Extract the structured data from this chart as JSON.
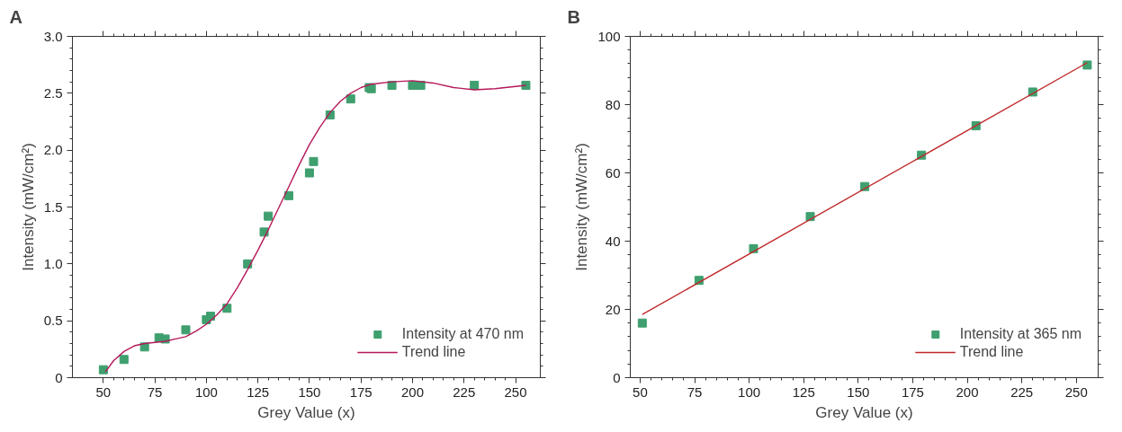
{
  "chart_data": [
    {
      "type": "scatter",
      "title": "A",
      "xlabel": "Grey Value (x)",
      "ylabel": "Intensity (mW/cm²)",
      "xlim": [
        35,
        262
      ],
      "ylim": [
        0,
        3.0
      ],
      "xticks": [
        50,
        75,
        100,
        125,
        150,
        175,
        200,
        225,
        250
      ],
      "yticks": [
        {
          "value": 0,
          "label": "0"
        },
        {
          "value": 0.5,
          "label": "0.5"
        },
        {
          "value": 1.0,
          "label": "1.0"
        },
        {
          "value": 1.5,
          "label": "1.5"
        },
        {
          "value": 2.0,
          "label": "2.0"
        },
        {
          "value": 2.5,
          "label": "2.5"
        },
        {
          "value": 3.0,
          "label": "3.0"
        }
      ],
      "grid": false,
      "legend": "bottom right",
      "series": [
        {
          "name": "Intensity at 470 nm",
          "marker": "square",
          "color": "#3f9f6f",
          "x": [
            50,
            60,
            70,
            77,
            80,
            90,
            100,
            102,
            110,
            120,
            128,
            130,
            140,
            150,
            152,
            160,
            170,
            179,
            180,
            190,
            200,
            202,
            204,
            230,
            255
          ],
          "values": [
            0.07,
            0.16,
            0.27,
            0.35,
            0.34,
            0.42,
            0.51,
            0.54,
            0.61,
            1.0,
            1.28,
            1.42,
            1.6,
            1.8,
            1.9,
            2.31,
            2.45,
            2.55,
            2.54,
            2.57,
            2.57,
            2.57,
            2.57,
            2.57,
            2.57
          ]
        },
        {
          "name": "Trend line",
          "type": "line",
          "marker": "none",
          "color": "#b5195a",
          "x": [
            51,
            55,
            60,
            65,
            70,
            75,
            80,
            85,
            90,
            95,
            100,
            105,
            110,
            115,
            120,
            125,
            130,
            135,
            140,
            145,
            150,
            155,
            160,
            165,
            170,
            175,
            180,
            190,
            200,
            210,
            220,
            230,
            240,
            255
          ],
          "values": [
            0.05,
            0.15,
            0.23,
            0.28,
            0.3,
            0.31,
            0.32,
            0.34,
            0.36,
            0.41,
            0.47,
            0.55,
            0.65,
            0.79,
            0.95,
            1.12,
            1.3,
            1.49,
            1.68,
            1.87,
            2.05,
            2.2,
            2.33,
            2.43,
            2.5,
            2.55,
            2.58,
            2.6,
            2.61,
            2.59,
            2.55,
            2.53,
            2.54,
            2.57
          ]
        }
      ]
    },
    {
      "type": "scatter",
      "title": "B",
      "xlabel": "Grey Value (x)",
      "ylabel": "Intensity (mW/cm²)",
      "xlim": [
        45.5,
        260
      ],
      "ylim": [
        0,
        100
      ],
      "xticks": [
        50,
        75,
        100,
        125,
        150,
        175,
        200,
        225,
        250
      ],
      "yticks": [
        0,
        20,
        40,
        60,
        80,
        100
      ],
      "grid": false,
      "legend": "bottom right",
      "series": [
        {
          "name": "Intensity at 365 nm",
          "marker": "square",
          "color": "#3f9f6f",
          "x": [
            51,
            77,
            102,
            128,
            153,
            179,
            204,
            230,
            255
          ],
          "values": [
            16,
            28.5,
            37.8,
            47.2,
            56,
            65.2,
            73.8,
            83.7,
            91.6
          ]
        },
        {
          "name": "Trend line",
          "type": "line",
          "marker": "none",
          "color": "#c0282a",
          "x": [
            51,
            255
          ],
          "values": [
            18.5,
            92.3
          ]
        }
      ]
    }
  ]
}
